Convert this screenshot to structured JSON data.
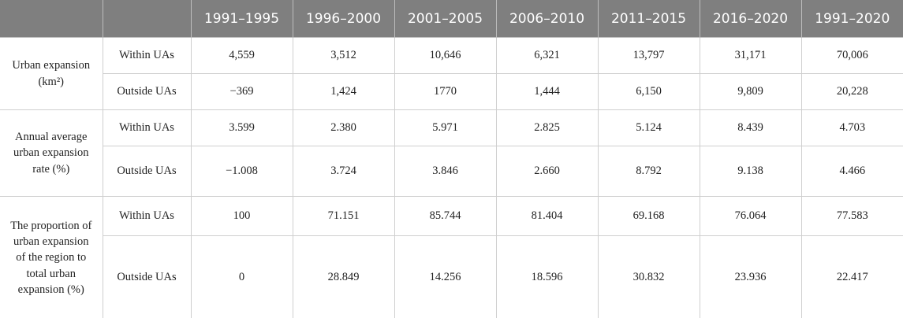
{
  "table": {
    "columns": [
      "1991–1995",
      "1996–2000",
      "2001–2005",
      "2006–2010",
      "2011–2015",
      "2016–2020",
      "1991–2020"
    ],
    "groups": [
      {
        "label": "Urban expansion (km²)",
        "rows": [
          {
            "label": "Within UAs",
            "values": [
              "4,559",
              "3,512",
              "10,646",
              "6,321",
              "13,797",
              "31,171",
              "70,006"
            ]
          },
          {
            "label": "Outside UAs",
            "values": [
              "−369",
              "1,424",
              "1770",
              "1,444",
              "6,150",
              "9,809",
              "20,228"
            ]
          }
        ]
      },
      {
        "label": "Annual average urban expansion rate (%)",
        "rows": [
          {
            "label": "Within UAs",
            "values": [
              "3.599",
              "2.380",
              "5.971",
              "2.825",
              "5.124",
              "8.439",
              "4.703"
            ]
          },
          {
            "label": "Outside UAs",
            "values": [
              "−1.008",
              "3.724",
              "3.846",
              "2.660",
              "8.792",
              "9.138",
              "4.466"
            ]
          }
        ]
      },
      {
        "label": "The proportion of urban expansion of the region to total urban expansion (%)",
        "rows": [
          {
            "label": "Within UAs",
            "values": [
              "100",
              "71.151",
              "85.744",
              "81.404",
              "69.168",
              "76.064",
              "77.583"
            ]
          },
          {
            "label": "Outside UAs",
            "values": [
              "0",
              "28.849",
              "14.256",
              "18.596",
              "30.832",
              "23.936",
              "22.417"
            ]
          }
        ]
      }
    ]
  }
}
